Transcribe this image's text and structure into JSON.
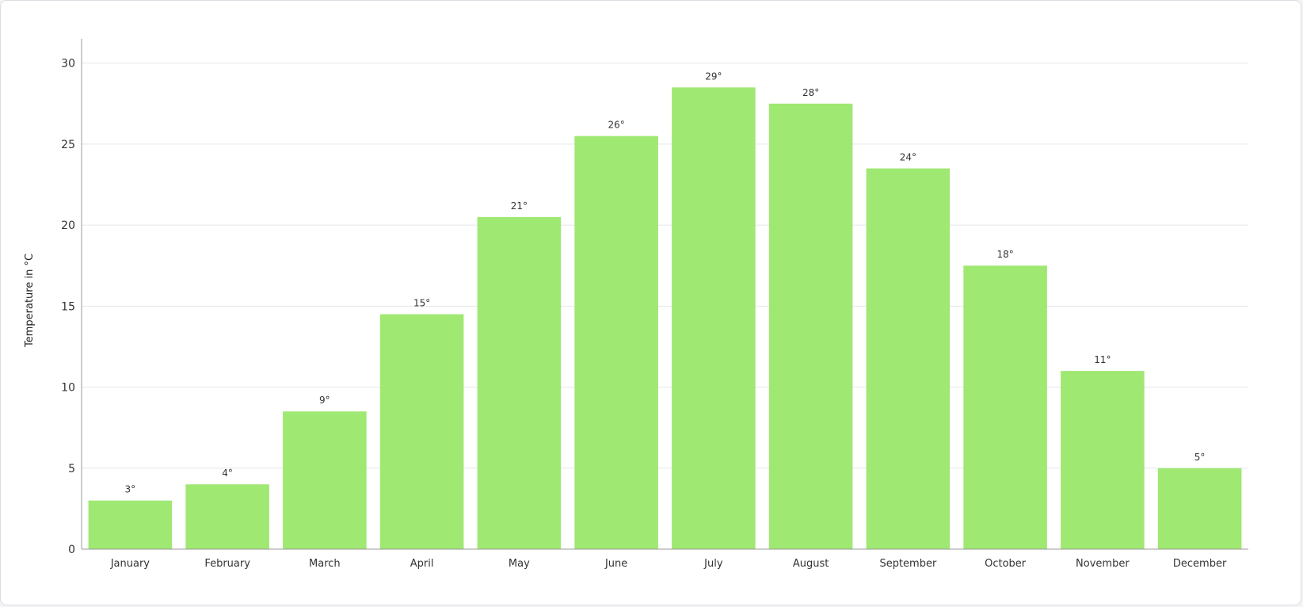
{
  "chart_data": {
    "type": "bar",
    "title": "",
    "xlabel": "",
    "ylabel": "Temperature in °C",
    "categories": [
      "January",
      "February",
      "March",
      "April",
      "May",
      "June",
      "July",
      "August",
      "September",
      "October",
      "November",
      "December"
    ],
    "series": [
      {
        "values": [
          3,
          4,
          8.5,
          14.5,
          20.5,
          25.5,
          28.5,
          27.5,
          23.5,
          17.5,
          11,
          5
        ],
        "data_labels": [
          "3°",
          "4°",
          "9°",
          "15°",
          "21°",
          "26°",
          "29°",
          "28°",
          "24°",
          "18°",
          "11°",
          "5°"
        ],
        "color": "#9fe872"
      }
    ],
    "ylim": [
      0,
      31.5
    ],
    "yticks": [
      0,
      5,
      10,
      15,
      20,
      25,
      30
    ],
    "ytick_labels": [
      "0",
      "5",
      "10",
      "15",
      "20",
      "25",
      "30"
    ],
    "grid": true,
    "legend": "none",
    "colors": {
      "bar": "#9fe872",
      "grid": "#e4e7ec",
      "axis": "#999999"
    }
  }
}
